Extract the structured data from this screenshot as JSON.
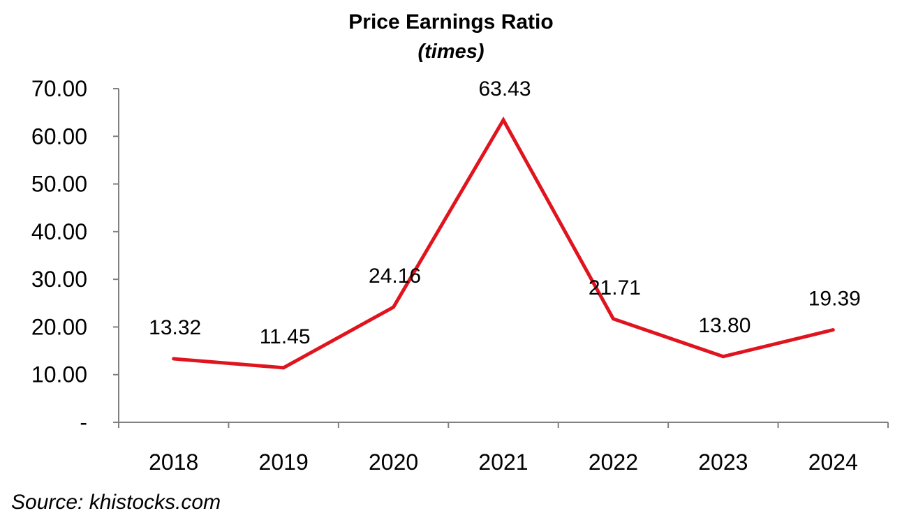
{
  "chart_data": {
    "type": "line",
    "title": "Price Earnings Ratio",
    "subtitle": "(times)",
    "xlabel": "",
    "ylabel": "",
    "categories": [
      "2018",
      "2019",
      "2020",
      "2021",
      "2022",
      "2023",
      "2024"
    ],
    "series": [
      {
        "values": [
          13.32,
          11.45,
          24.16,
          63.43,
          21.71,
          13.8,
          19.39
        ],
        "color": "#e0141e"
      }
    ],
    "data_labels": [
      "13.32",
      "11.45",
      "24.16",
      "63.43",
      "21.71",
      "13.80",
      "19.39"
    ],
    "ylim": [
      0,
      70
    ],
    "y_ticks": [
      0,
      10,
      20,
      30,
      40,
      50,
      60,
      70
    ],
    "y_tick_labels": [
      "-",
      "10.00",
      "20.00",
      "30.00",
      "40.00",
      "50.00",
      "60.00",
      "70.00"
    ],
    "grid": false,
    "legend": "none"
  },
  "source": "Source: khistocks.com"
}
